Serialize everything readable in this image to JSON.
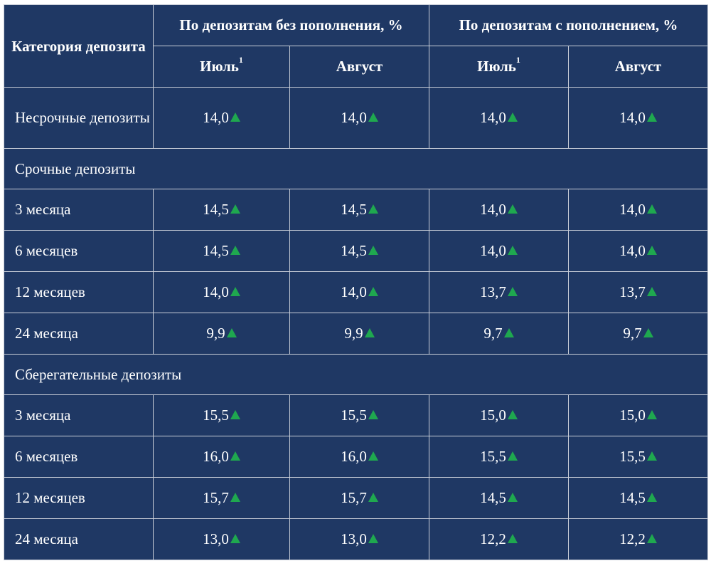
{
  "header": {
    "category": "Категория депозита",
    "group_no_topup": "По депозитам без пополнения, %",
    "group_with_topup": "По депозитам с пополнением, %",
    "july": "Июль",
    "july_footnote": "1",
    "august": "Август"
  },
  "colors": {
    "background": "#1f3864",
    "gridline": "#c9ced8",
    "text": "#ffffff",
    "up_arrow": "#1fa84f"
  },
  "icons": {
    "trend": "triangle-up-icon"
  },
  "rows": [
    {
      "type": "data",
      "label": "Несрочные депозиты",
      "values": [
        "14,0",
        "14,0",
        "14,0",
        "14,0"
      ]
    },
    {
      "type": "section",
      "label": "Срочные депозиты"
    },
    {
      "type": "data",
      "label": "3 месяца",
      "values": [
        "14,5",
        "14,5",
        "14,0",
        "14,0"
      ]
    },
    {
      "type": "data",
      "label": "6 месяцев",
      "values": [
        "14,5",
        "14,5",
        "14,0",
        "14,0"
      ]
    },
    {
      "type": "data",
      "label": "12 месяцев",
      "values": [
        "14,0",
        "14,0",
        "13,7",
        "13,7"
      ]
    },
    {
      "type": "data",
      "label": "24 месяца",
      "values": [
        "9,9",
        "9,9",
        "9,7",
        "9,7"
      ]
    },
    {
      "type": "section",
      "label": "Сберегательные депозиты"
    },
    {
      "type": "data",
      "label": "3 месяца",
      "values": [
        "15,5",
        "15,5",
        "15,0",
        "15,0"
      ]
    },
    {
      "type": "data",
      "label": "6 месяцев",
      "values": [
        "16,0",
        "16,0",
        "15,5",
        "15,5"
      ]
    },
    {
      "type": "data",
      "label": "12 месяцев",
      "values": [
        "15,7",
        "15,7",
        "14,5",
        "14,5"
      ]
    },
    {
      "type": "data",
      "label": "24 месяца",
      "values": [
        "13,0",
        "13,0",
        "12,2",
        "12,2"
      ]
    }
  ]
}
